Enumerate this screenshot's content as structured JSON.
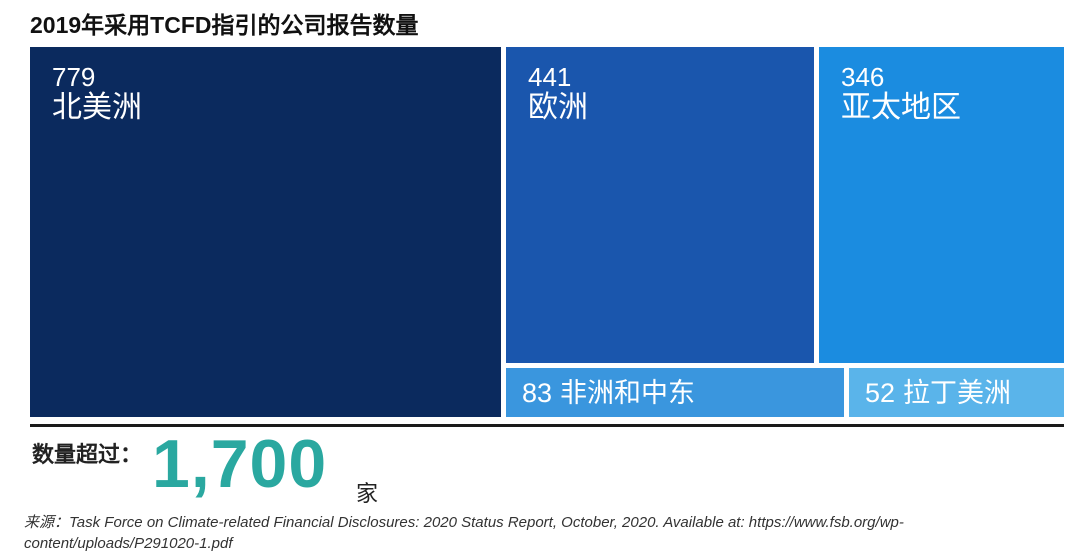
{
  "chart_data": {
    "type": "treemap",
    "title": "2019年采用TCFD指引的公司报告数量",
    "items": [
      {
        "label": "北美洲",
        "value": 779,
        "color": "#0b2a5e"
      },
      {
        "label": "欧洲",
        "value": 441,
        "color": "#1a56ad"
      },
      {
        "label": "亚太地区",
        "value": 346,
        "color": "#1b8ce0"
      },
      {
        "label": "非洲和中东",
        "value": 83,
        "color": "#3a96de"
      },
      {
        "label": "拉丁美洲",
        "value": 52,
        "color": "#5ab4ea"
      }
    ]
  },
  "total": {
    "label": "数量超过：",
    "value": "1,700",
    "unit": "家"
  },
  "source": {
    "label": "来源：",
    "text": "Task Force on Climate-related Financial Disclosures: 2020 Status Report, October, 2020. Available at: https://www.fsb.org/wp-content/uploads/P291020-1.pdf"
  }
}
